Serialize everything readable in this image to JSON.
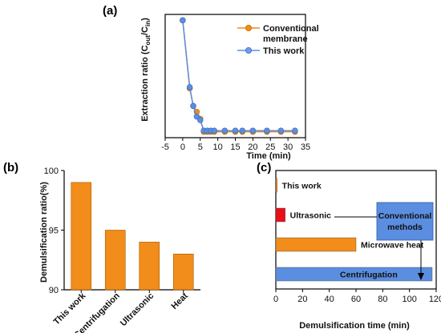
{
  "chart_data": [
    {
      "panel_label": "(a)",
      "type": "line",
      "xlabel": "Time (min)",
      "ylabel_main": "Extraction ratio (C",
      "ylabel_sub1": "out",
      "ylabel_mid": "/C",
      "ylabel_sub2": "in",
      "ylabel_end": ")",
      "xlim": [
        -5,
        35
      ],
      "ylim": [
        0,
        1.05
      ],
      "x_ticks": [
        -5,
        0,
        5,
        10,
        15,
        20,
        25,
        30,
        35
      ],
      "legend_position": "top-right",
      "series": [
        {
          "name_line1": "Conventional",
          "name_line2": "membrane",
          "color": "#f28c1a",
          "x": [
            0,
            2,
            3,
            4,
            5,
            6,
            7,
            8,
            9,
            12,
            15,
            17,
            20,
            24,
            28,
            32
          ],
          "y": [
            1.0,
            0.42,
            0.27,
            0.22,
            0.16,
            0.05,
            0.05,
            0.05,
            0.05,
            0.05,
            0.05,
            0.05,
            0.05,
            0.05,
            0.05,
            0.05
          ]
        },
        {
          "name": "This work",
          "color": "#5b8ee0",
          "x": [
            0,
            2,
            3,
            4,
            5,
            6,
            7,
            8,
            9,
            12,
            15,
            17,
            20,
            24,
            28,
            32
          ],
          "y": [
            1.0,
            0.43,
            0.27,
            0.18,
            0.15,
            0.06,
            0.06,
            0.06,
            0.06,
            0.06,
            0.06,
            0.06,
            0.06,
            0.06,
            0.06,
            0.06
          ]
        }
      ]
    },
    {
      "panel_label": "(b)",
      "type": "bar",
      "ylabel": "Demulsification ratio(%)",
      "categories": [
        "This work",
        "Centrifugation",
        "Ultrasonic",
        "Heat"
      ],
      "values": [
        99,
        95,
        94,
        93
      ],
      "ylim": [
        90,
        100
      ],
      "y_ticks": [
        90,
        95,
        100
      ],
      "color": "#f28c1a"
    },
    {
      "panel_label": "(c)",
      "type": "bar",
      "orientation": "horizontal",
      "xlabel": "Demulsification time (min)",
      "xlim": [
        0,
        120
      ],
      "x_ticks": [
        0,
        20,
        40,
        60,
        80,
        100,
        120
      ],
      "bars": [
        {
          "label": "This work",
          "value": 1,
          "color": "#f28c1a"
        },
        {
          "label": "Ultrasonic",
          "value": 7,
          "color": "#e8101a"
        },
        {
          "label": "Microwave heat",
          "value": 60,
          "color": "#f28c1a"
        },
        {
          "label": "Centrifugation",
          "value": 117,
          "color": "#5b8ee0"
        }
      ],
      "callout_line1": "Conventional",
      "callout_line2": "methods",
      "callout_color": "#5b8ee0"
    }
  ]
}
